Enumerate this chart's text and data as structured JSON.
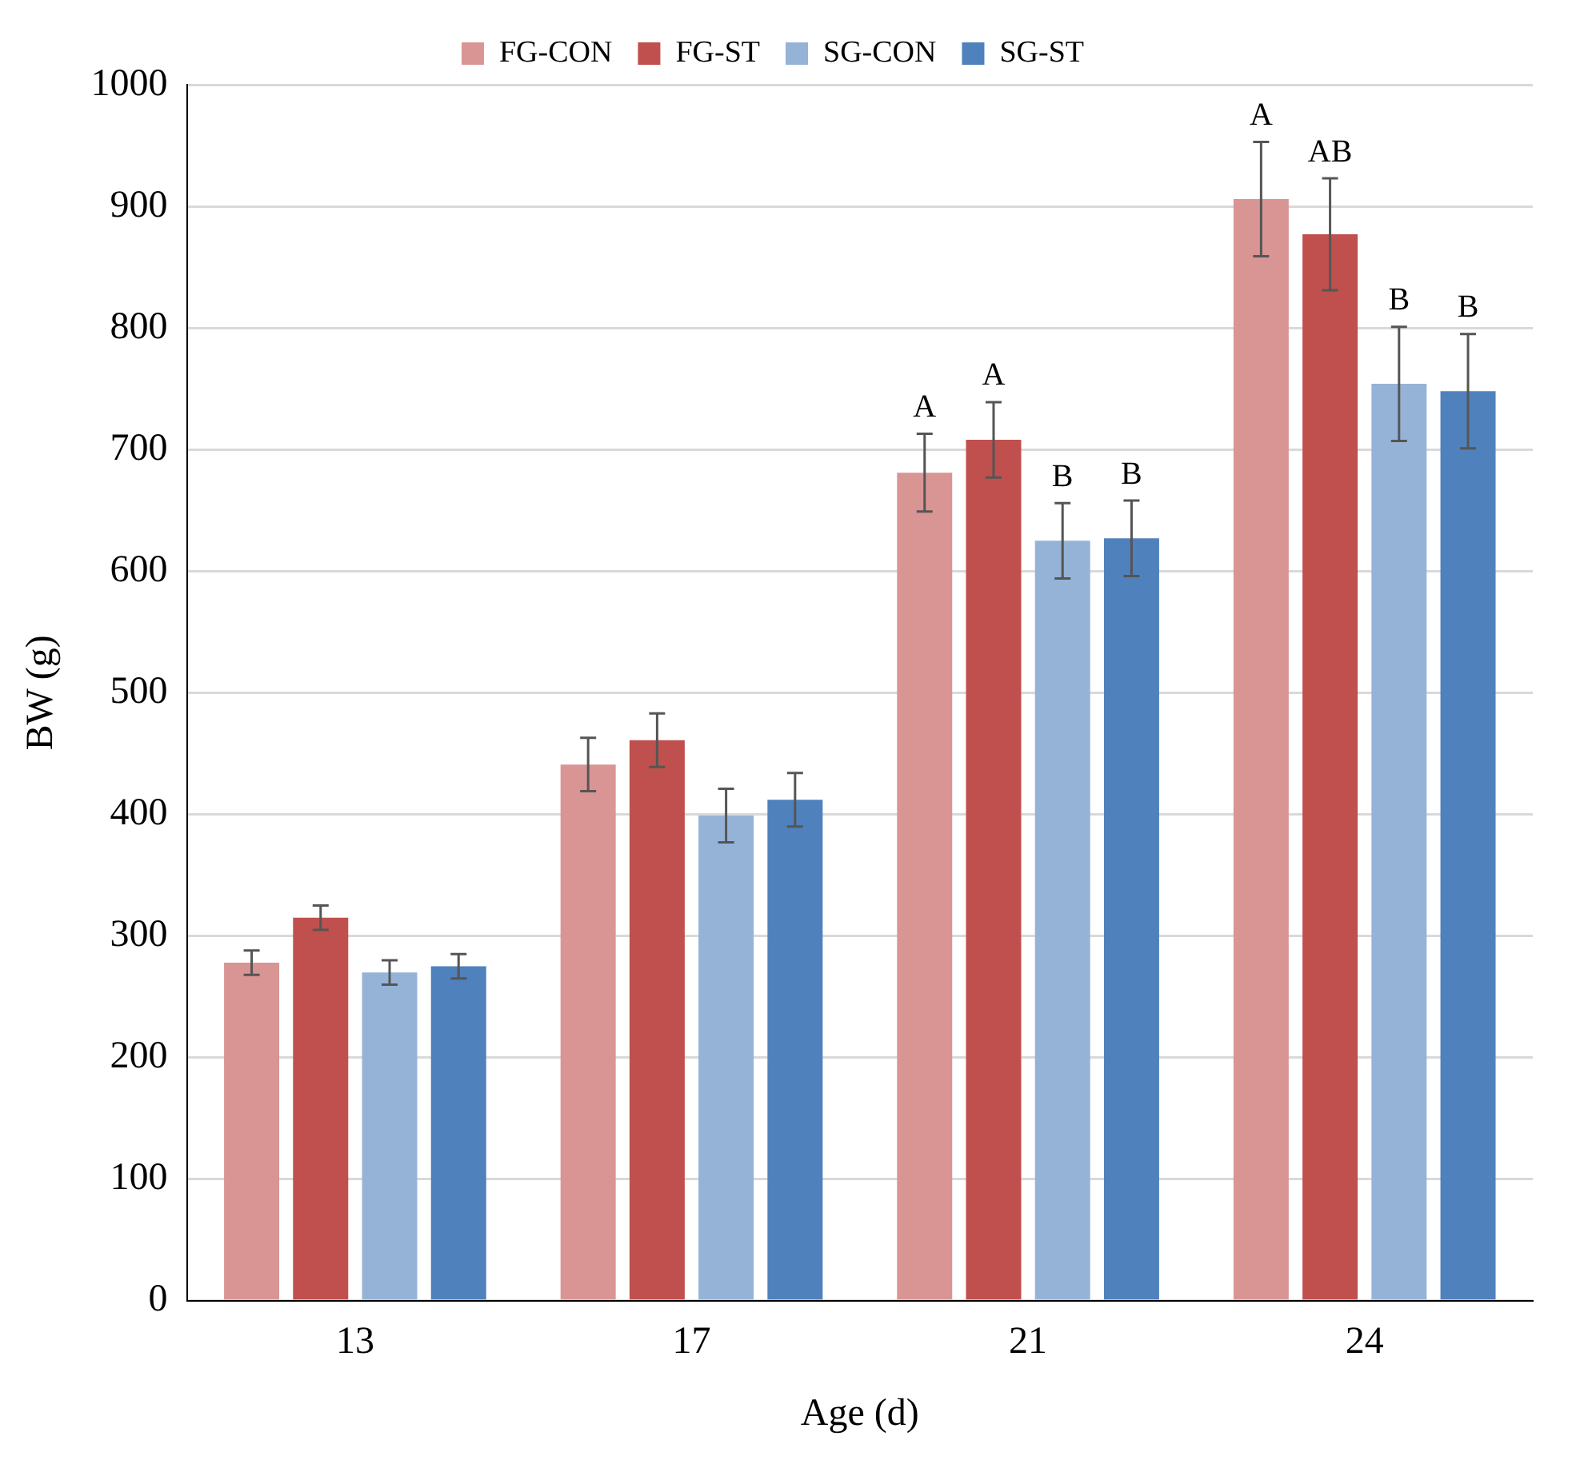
{
  "chart_data": {
    "type": "bar",
    "xlabel": "Age (d)",
    "ylabel": "BW (g)",
    "categories": [
      "13",
      "17",
      "21",
      "24"
    ],
    "series": [
      {
        "name": "FG-CON",
        "color": "#d99594",
        "values": [
          278,
          441,
          681,
          906
        ],
        "errors": [
          10,
          22,
          32,
          47
        ],
        "value_labels": [
          null,
          null,
          "A",
          "A"
        ]
      },
      {
        "name": "FG-ST",
        "color": "#c0504d",
        "values": [
          315,
          461,
          708,
          877
        ],
        "errors": [
          10,
          22,
          31,
          46
        ],
        "value_labels": [
          null,
          null,
          "A",
          "AB"
        ]
      },
      {
        "name": "SG-CON",
        "color": "#95b3d7",
        "values": [
          270,
          399,
          625,
          754
        ],
        "errors": [
          10,
          22,
          31,
          47
        ],
        "value_labels": [
          null,
          null,
          "B",
          "B"
        ]
      },
      {
        "name": "SG-ST",
        "color": "#4f81bd",
        "values": [
          275,
          412,
          627,
          748
        ],
        "errors": [
          10,
          22,
          31,
          47
        ],
        "value_labels": [
          null,
          null,
          "B",
          "B"
        ]
      }
    ],
    "ylim": [
      0,
      1000
    ],
    "yticks": [
      0,
      100,
      200,
      300,
      400,
      500,
      600,
      700,
      800,
      900,
      1000
    ],
    "grid": "y",
    "legend": "top"
  }
}
